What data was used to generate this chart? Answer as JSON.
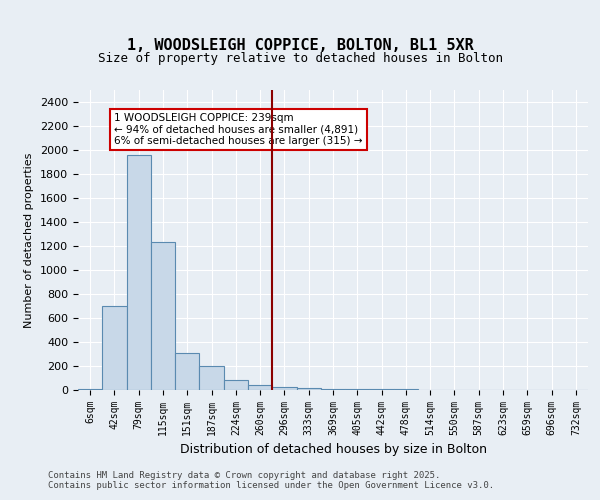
{
  "title": "1, WOODSLEIGH COPPICE, BOLTON, BL1 5XR",
  "subtitle": "Size of property relative to detached houses in Bolton",
  "xlabel": "Distribution of detached houses by size in Bolton",
  "ylabel": "Number of detached properties",
  "bar_color": "#c8d8e8",
  "bar_edge_color": "#5a8ab0",
  "background_color": "#e8eef4",
  "vline_color": "#8b0000",
  "vline_x": 8,
  "annotation_text": "1 WOODSLEIGH COPPICE: 239sqm\n← 94% of detached houses are smaller (4,891)\n6% of semi-detached houses are larger (315) →",
  "annotation_box_color": "white",
  "annotation_box_edge": "#cc0000",
  "categories": [
    "6sqm",
    "42sqm",
    "79sqm",
    "115sqm",
    "151sqm",
    "187sqm",
    "224sqm",
    "260sqm",
    "296sqm",
    "333sqm",
    "369sqm",
    "405sqm",
    "442sqm",
    "478sqm",
    "514sqm",
    "550sqm",
    "587sqm",
    "623sqm",
    "659sqm",
    "696sqm",
    "732sqm"
  ],
  "values": [
    5,
    700,
    1960,
    1230,
    310,
    200,
    80,
    45,
    25,
    20,
    10,
    8,
    5,
    5,
    3,
    2,
    1,
    1,
    0,
    0,
    0
  ],
  "ylim": [
    0,
    2500
  ],
  "yticks": [
    0,
    200,
    400,
    600,
    800,
    1000,
    1200,
    1400,
    1600,
    1800,
    2000,
    2200,
    2400
  ],
  "footer_line1": "Contains HM Land Registry data © Crown copyright and database right 2025.",
  "footer_line2": "Contains public sector information licensed under the Open Government Licence v3.0."
}
